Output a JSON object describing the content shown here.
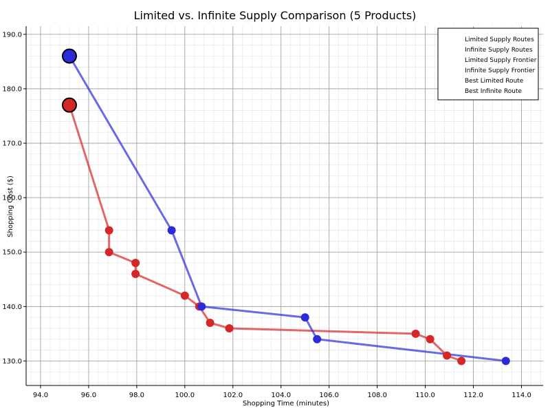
{
  "chart_data": {
    "type": "line",
    "title": "Limited vs. Infinite Supply Comparison (5 Products)",
    "xlabel": "Shopping Time (minutes)",
    "ylabel": "Shopping Cost ($)",
    "xlim": [
      93.4,
      114.9
    ],
    "ylim": [
      125.5,
      191.5
    ],
    "xticks": [
      94,
      96,
      98,
      100,
      102,
      104,
      106,
      108,
      110,
      112,
      114
    ],
    "yticks": [
      130,
      140,
      150,
      160,
      170,
      180,
      190
    ],
    "grid": true,
    "legend_placement": "top-right",
    "legend": [
      "Limited Supply Routes",
      "Infinite Supply Routes",
      "Limited Supply Frontier",
      "Infinite Supply Frontier",
      "Best Limited Route",
      "Best Infinite Route"
    ],
    "series": [
      {
        "color": "#d62728",
        "points": [
          [
            95.2,
            177
          ],
          [
            96.85,
            154
          ],
          [
            96.85,
            150
          ],
          [
            97.95,
            148
          ],
          [
            97.95,
            146
          ],
          [
            100.0,
            142
          ],
          [
            100.6,
            140
          ],
          [
            101.05,
            137
          ],
          [
            101.85,
            136
          ],
          [
            109.6,
            135
          ],
          [
            110.2,
            134
          ],
          [
            110.9,
            131
          ],
          [
            111.5,
            130
          ]
        ]
      },
      {
        "color": "#2b2bd9",
        "points": [
          [
            95.2,
            186
          ],
          [
            99.45,
            154
          ],
          [
            100.7,
            140
          ],
          [
            105.0,
            138
          ],
          [
            105.5,
            134
          ],
          [
            113.35,
            130
          ]
        ]
      }
    ],
    "best_limited": [
      95.2,
      177
    ],
    "best_infinite": [
      95.2,
      186
    ]
  }
}
